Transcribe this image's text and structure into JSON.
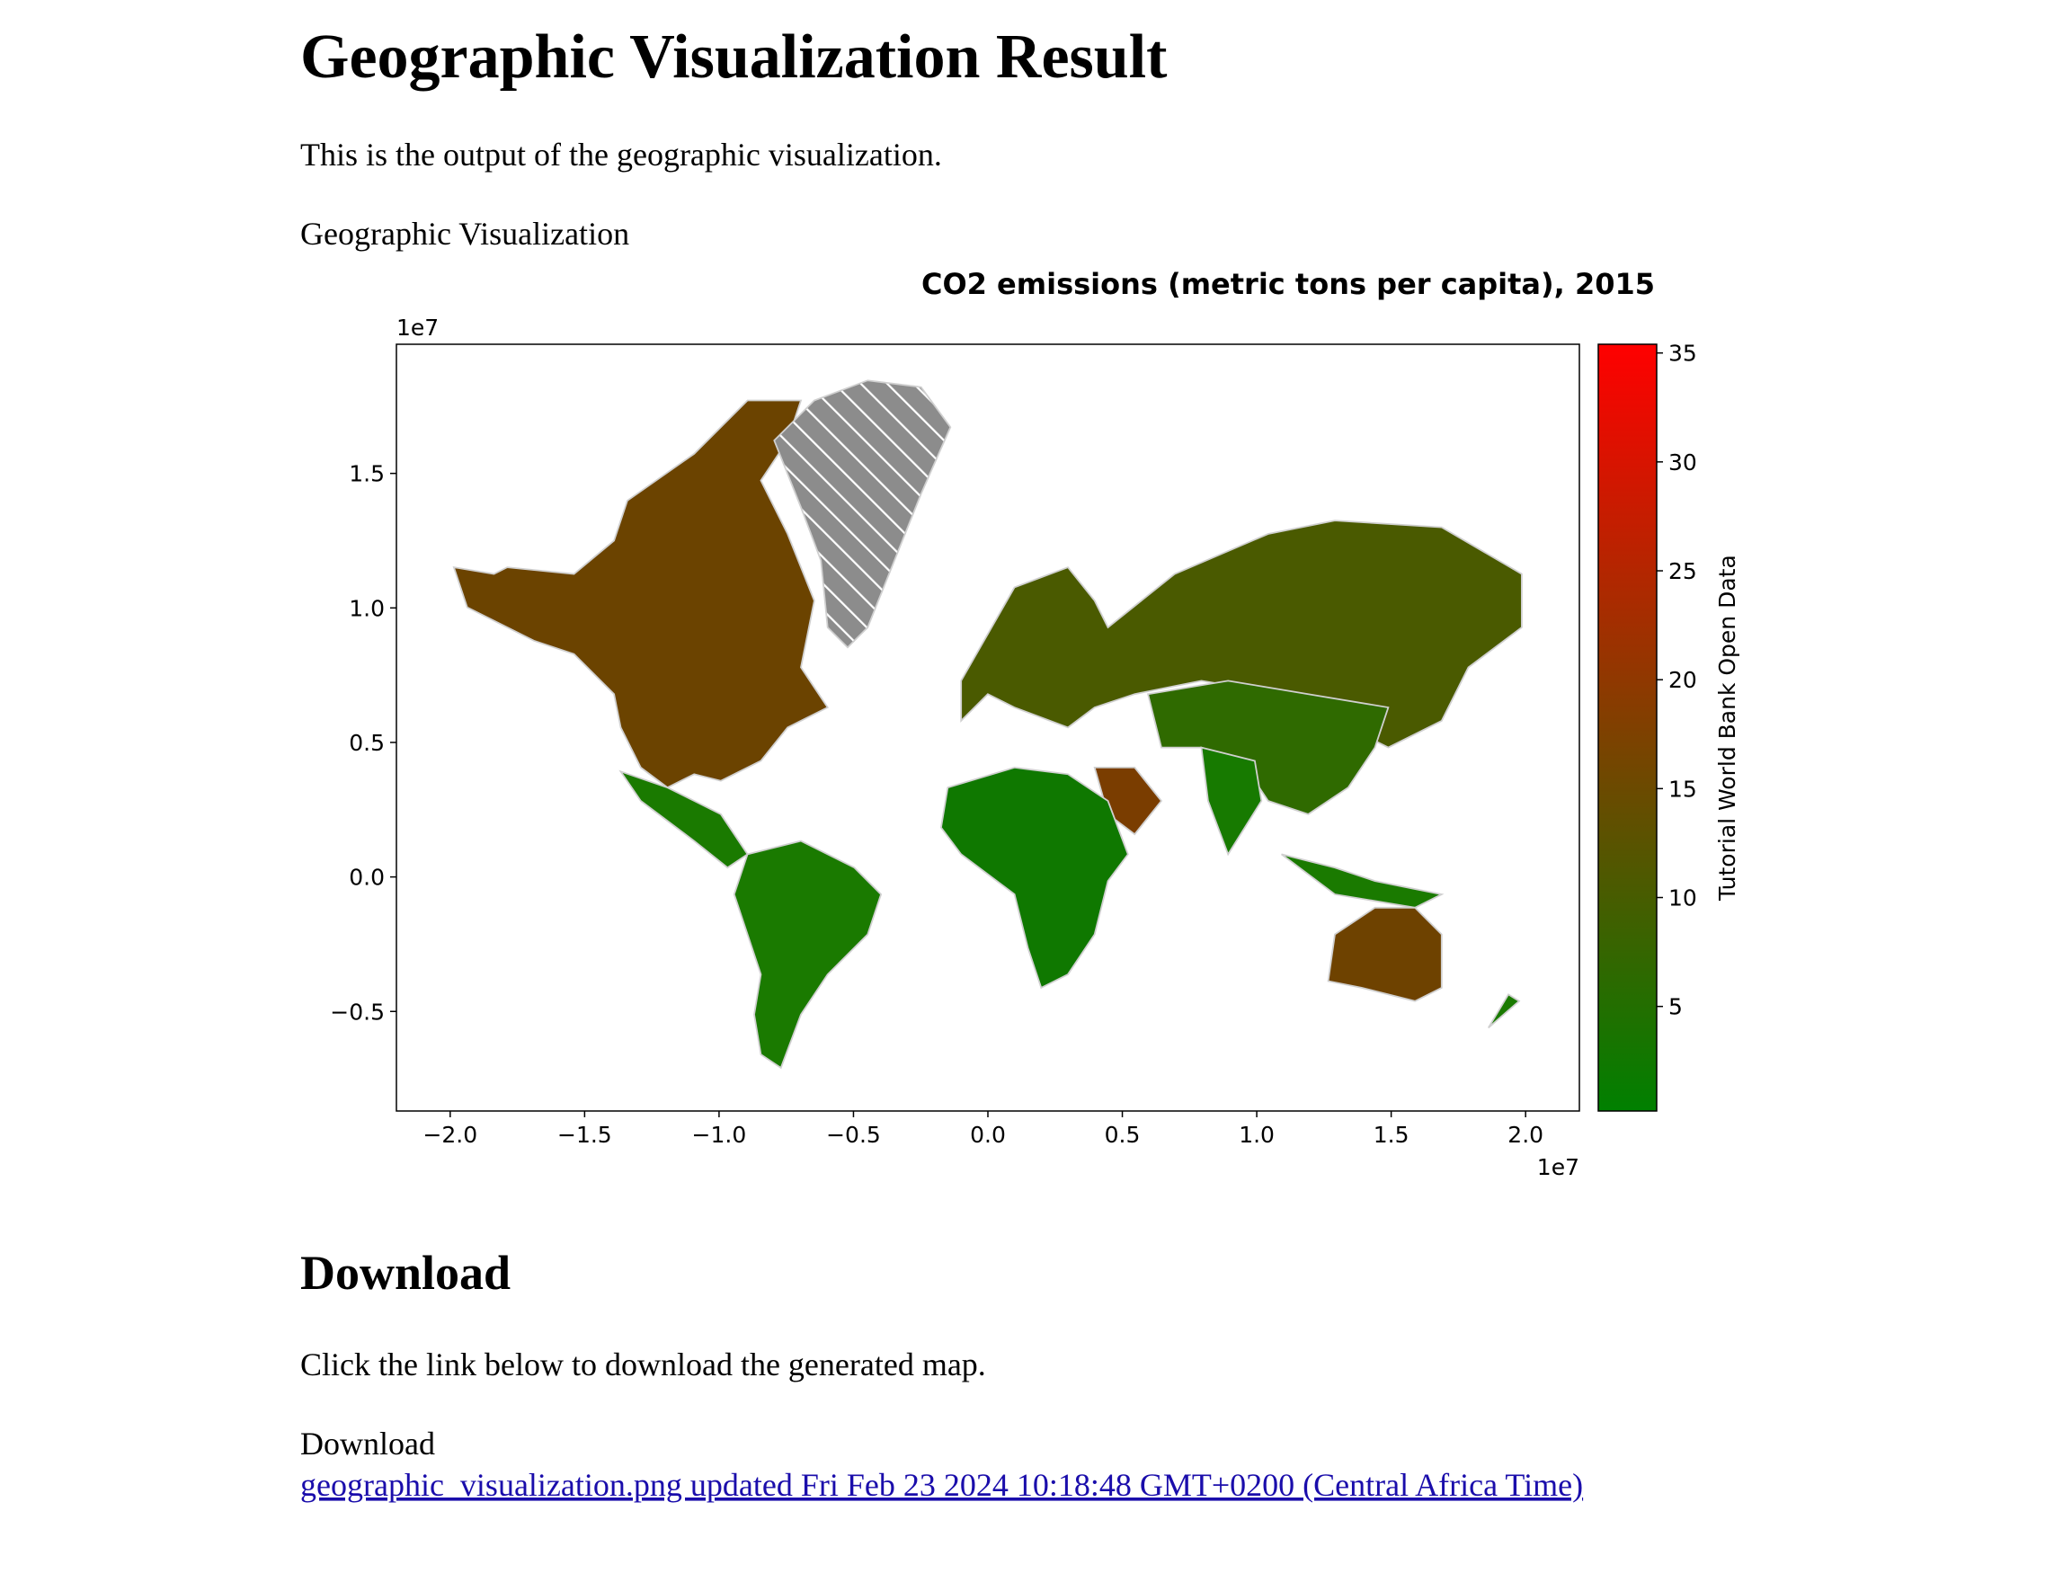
{
  "header": {
    "title": "Geographic Visualization Result",
    "intro": "This is the output of the geographic visualization."
  },
  "caption": "Geographic Visualization",
  "chart_data": {
    "type": "map",
    "title": "CO2 emissions (metric tons per capita), 2015",
    "x_multiplier_label": "1e7",
    "y_multiplier_label": "1e7",
    "xlim": [
      -2.2,
      2.2
    ],
    "xticks": [
      {
        "value": -2.0,
        "label": "−2.0"
      },
      {
        "value": -1.5,
        "label": "−1.5"
      },
      {
        "value": -1.0,
        "label": "−1.0"
      },
      {
        "value": -0.5,
        "label": "−0.5"
      },
      {
        "value": 0.0,
        "label": "0.0"
      },
      0.5,
      {
        "value": 1.0,
        "label": "1.0"
      },
      1.5,
      {
        "value": 2.0,
        "label": "2.0"
      }
    ],
    "ylim": [
      -0.87,
      1.98
    ],
    "yticks": [
      {
        "value": -0.5,
        "label": "−0.5"
      },
      {
        "value": 0.0,
        "label": "0.0"
      },
      0.5,
      {
        "value": 1.0,
        "label": "1.0"
      },
      1.5
    ],
    "colorbar": {
      "label": "Tutorial World Bank Open Data",
      "lim": [
        0.2,
        35.4
      ],
      "ticks": [
        5,
        10,
        15,
        20,
        25,
        30,
        35
      ],
      "colors": [
        "#008000",
        "#ff0000"
      ]
    }
  },
  "download": {
    "heading": "Download",
    "text": "Click the link below to download the generated map.",
    "label": "Download",
    "link": "geographic_visualization.png updated Fri Feb 23 2024 10:18:48 GMT+0200 (Central Africa Time)"
  }
}
